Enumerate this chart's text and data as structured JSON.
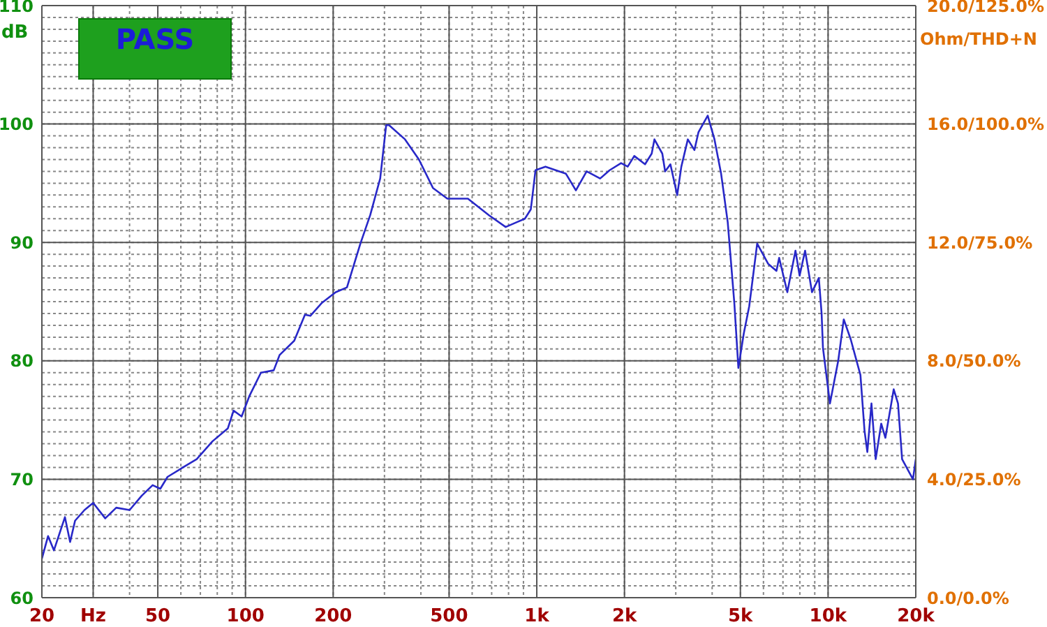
{
  "chart_data": {
    "type": "line",
    "ylabel": "dB",
    "y2label": "Ohm/THD+N",
    "annotations": [
      "PASS"
    ],
    "x": [
      20,
      21,
      22,
      24,
      25,
      26,
      28,
      30,
      33,
      36,
      40,
      44,
      48,
      51,
      54,
      61,
      68,
      77,
      87,
      91,
      97,
      103,
      113,
      125,
      131,
      147,
      160,
      167,
      183,
      204,
      223,
      248,
      268,
      290,
      304,
      311,
      353,
      394,
      440,
      493,
      580,
      685,
      782,
      852,
      910,
      954,
      990,
      1071,
      1259,
      1362,
      1483,
      1650,
      1779,
      1947,
      2052,
      2161,
      2353,
      2480,
      2534,
      2697,
      2758,
      2875,
      3034,
      3135,
      3300,
      3476,
      3589,
      3862,
      4074,
      4293,
      4524,
      4765,
      4921,
      5135,
      5361,
      5709,
      6223,
      6649,
      6792,
      7245,
      7727,
      7985,
      8338,
      8805,
      9294,
      9501,
      9602,
      10149,
      10833,
      11320,
      11964,
      12914,
      13339,
      13637,
      14090,
      14569,
      15220,
      15730,
      16800,
      17380,
      17950,
      19560,
      20000
    ],
    "series": [
      {
        "color": "#2828c8",
        "values": [
          63.3,
          65.2,
          64.0,
          66.8,
          64.7,
          66.5,
          67.4,
          68.0,
          66.7,
          67.6,
          67.4,
          68.6,
          69.5,
          69.2,
          70.2,
          71.0,
          71.7,
          73.2,
          74.3,
          75.8,
          75.3,
          77.0,
          79.0,
          79.2,
          80.5,
          81.7,
          83.9,
          83.8,
          84.9,
          85.8,
          86.2,
          89.9,
          92.3,
          95.4,
          99.9,
          99.9,
          98.7,
          97.0,
          94.6,
          93.7,
          93.7,
          92.3,
          91.3,
          91.7,
          92.0,
          92.8,
          96.1,
          96.4,
          95.8,
          94.4,
          96.0,
          95.4,
          96.1,
          96.7,
          96.4,
          97.3,
          96.6,
          97.5,
          98.7,
          97.5,
          96.0,
          96.6,
          94.0,
          96.4,
          98.7,
          97.8,
          99.3,
          100.7,
          98.7,
          95.8,
          91.7,
          84.9,
          79.4,
          82.3,
          84.6,
          89.9,
          88.2,
          87.6,
          88.7,
          85.8,
          89.3,
          87.2,
          89.3,
          85.8,
          87.0,
          84.0,
          81.1,
          76.4,
          80.0,
          83.5,
          81.8,
          78.8,
          74.1,
          72.3,
          76.4,
          71.7,
          74.7,
          73.5,
          77.6,
          76.4,
          71.7,
          70.0,
          71.7
        ]
      }
    ],
    "xlim": [
      20,
      20000
    ],
    "xticks": [
      20,
      {
        "value": 30,
        "label": "Hz"
      },
      {
        "value": 40,
        "label": null
      },
      50,
      {
        "value": 60,
        "label": null
      },
      {
        "value": 70,
        "label": null
      },
      {
        "value": 80,
        "label": null
      },
      {
        "value": 90,
        "label": null
      },
      100,
      200,
      {
        "value": 300,
        "label": null
      },
      {
        "value": 400,
        "label": null
      },
      500,
      {
        "value": 600,
        "label": null
      },
      {
        "value": 700,
        "label": null
      },
      {
        "value": 800,
        "label": null
      },
      {
        "value": 900,
        "label": null
      },
      {
        "value": 1000,
        "label": "1k"
      },
      {
        "value": 2000,
        "label": "2k"
      },
      {
        "value": 3000,
        "label": null
      },
      {
        "value": 4000,
        "label": null
      },
      {
        "value": 5000,
        "label": "5k"
      },
      {
        "value": 6000,
        "label": null
      },
      {
        "value": 7000,
        "label": null
      },
      {
        "value": 8000,
        "label": null
      },
      {
        "value": 9000,
        "label": null
      },
      {
        "value": 10000,
        "label": "10k"
      },
      {
        "value": 20000,
        "label": "20k"
      }
    ],
    "ylim": [
      60,
      110
    ],
    "yticks": [
      60,
      {
        "value": 61,
        "label": null
      },
      {
        "value": 62,
        "label": null
      },
      {
        "value": 63,
        "label": null
      },
      {
        "value": 64,
        "label": null
      },
      {
        "value": 65,
        "label": null
      },
      {
        "value": 66,
        "label": null
      },
      {
        "value": 67,
        "label": null
      },
      {
        "value": 68,
        "label": null
      },
      {
        "value": 69,
        "label": null
      },
      70,
      {
        "value": 71,
        "label": null
      },
      {
        "value": 72,
        "label": null
      },
      {
        "value": 73,
        "label": null
      },
      {
        "value": 74,
        "label": null
      },
      {
        "value": 75,
        "label": null
      },
      {
        "value": 76,
        "label": null
      },
      {
        "value": 77,
        "label": null
      },
      {
        "value": 78,
        "label": null
      },
      {
        "value": 79,
        "label": null
      },
      80,
      {
        "value": 81,
        "label": null
      },
      {
        "value": 82,
        "label": null
      },
      {
        "value": 83,
        "label": null
      },
      {
        "value": 84,
        "label": null
      },
      {
        "value": 85,
        "label": null
      },
      {
        "value": 86,
        "label": null
      },
      {
        "value": 87,
        "label": null
      },
      {
        "value": 88,
        "label": null
      },
      {
        "value": 89,
        "label": null
      },
      90,
      {
        "value": 91,
        "label": null
      },
      {
        "value": 92,
        "label": null
      },
      {
        "value": 93,
        "label": null
      },
      {
        "value": 94,
        "label": null
      },
      {
        "value": 95,
        "label": null
      },
      {
        "value": 96,
        "label": null
      },
      {
        "value": 97,
        "label": null
      },
      {
        "value": 98,
        "label": null
      },
      {
        "value": 99,
        "label": null
      },
      100,
      {
        "value": 101,
        "label": null
      },
      {
        "value": 102,
        "label": null
      },
      {
        "value": 103,
        "label": null
      },
      {
        "value": 104,
        "label": null
      },
      {
        "value": 105,
        "label": null
      },
      {
        "value": 106,
        "label": null
      },
      {
        "value": 107,
        "label": null
      },
      {
        "value": 108,
        "label": null
      },
      {
        "value": 109,
        "label": null
      },
      110
    ],
    "y2_categories": [
      "20.0/125.0%",
      "16.0/100.0%",
      "12.0/75.0%",
      "8.0/50.0%",
      "4.0/25.0%",
      "0.0/0.0%"
    ],
    "log": "x",
    "grid": true,
    "legend": false,
    "marker": "none",
    "line_style": "solid"
  }
}
